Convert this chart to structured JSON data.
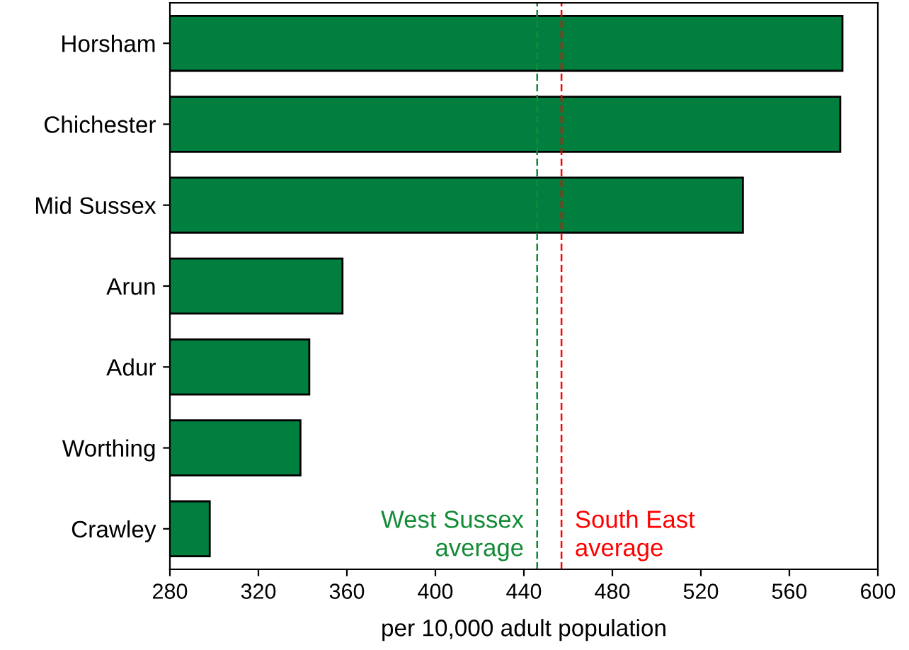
{
  "chart_data": {
    "type": "bar",
    "orientation": "horizontal",
    "xlabel": "per 10,000 adult population",
    "categories": [
      "Horsham",
      "Chichester",
      "Mid Sussex",
      "Arun",
      "Adur",
      "Worthing",
      "Crawley"
    ],
    "values": [
      584,
      583,
      539,
      358,
      343,
      339,
      298
    ],
    "color": "#007f3f",
    "xlim": [
      280,
      600
    ],
    "xticks": [
      280,
      320,
      360,
      400,
      440,
      480,
      520,
      560,
      600
    ],
    "grid": false,
    "ref_lines": [
      {
        "axis": "x",
        "value": 446,
        "label": "West Sussex\naverage",
        "color": "#138a36",
        "line_style": "dashed"
      },
      {
        "axis": "x",
        "value": 457,
        "label": "South East\naverage",
        "color": "#ff0000",
        "line_style": "dashed"
      }
    ]
  }
}
